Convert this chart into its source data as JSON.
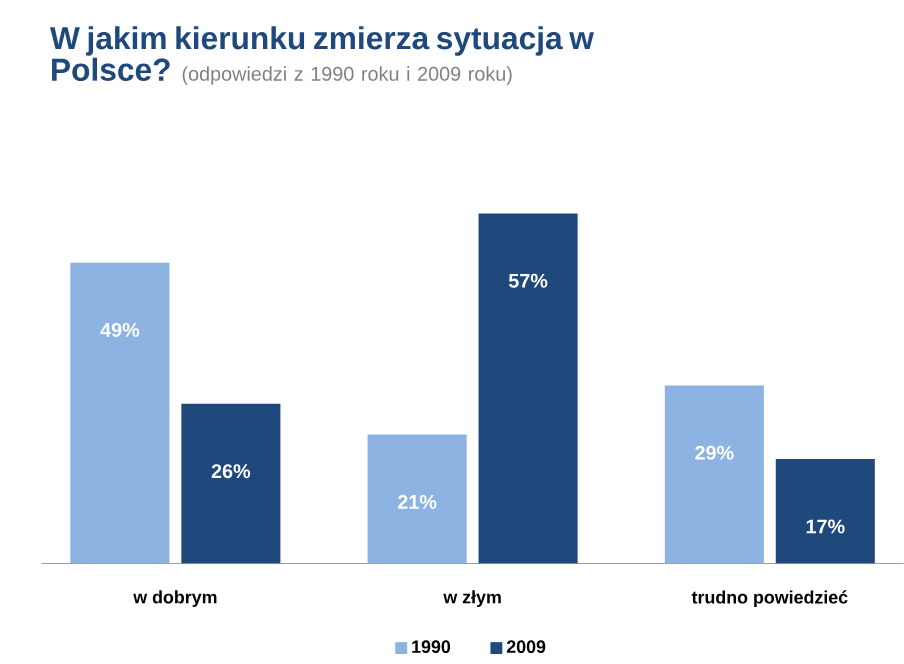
{
  "chart_data": {
    "type": "bar",
    "title": "W jakim kierunku zmierza sytuacja w Polsce?",
    "subtitle": "(odpowiedzi z 1990 roku i 2009 roku)",
    "categories": [
      "w dobrym",
      "w złym",
      "trudno powiedzieć"
    ],
    "series": [
      {
        "name": "1990",
        "color": "#8db3e2",
        "values": [
          49,
          21,
          29
        ],
        "value_labels": [
          "49%",
          "21%",
          "29%"
        ]
      },
      {
        "name": "2009",
        "color": "#1f497d",
        "values": [
          26,
          57,
          17
        ],
        "value_labels": [
          "26%",
          "57%",
          "17%"
        ]
      }
    ],
    "legend": "bottom"
  }
}
